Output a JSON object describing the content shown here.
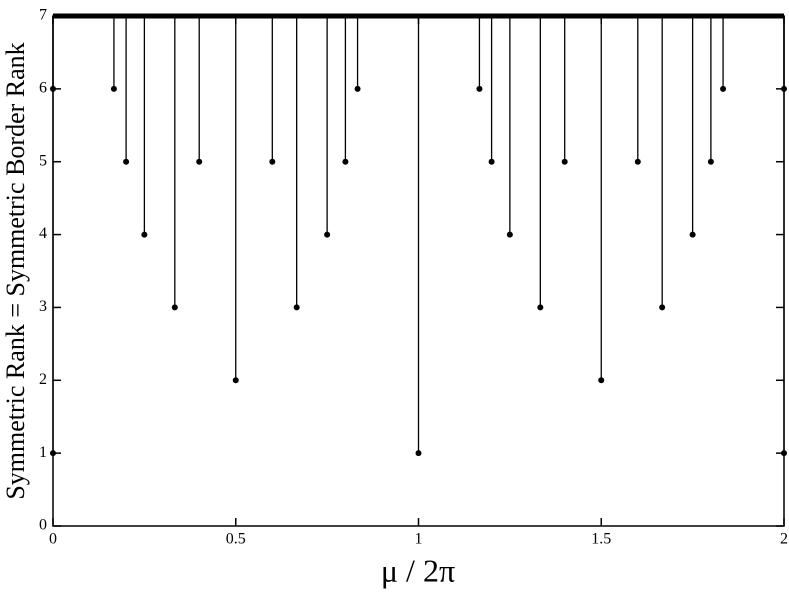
{
  "chart_data": {
    "type": "spike",
    "x_label": "μ / 2π",
    "y_label": "Symmetric Rank = Symmetric Border Rank",
    "baseline": 7,
    "x": [
      0,
      0,
      0.1667,
      0.2,
      0.25,
      0.3333,
      0.4,
      0.5,
      0.6,
      0.6667,
      0.75,
      0.8,
      0.8333,
      1,
      1.1667,
      1.2,
      1.25,
      1.3333,
      1.4,
      1.5,
      1.6,
      1.6667,
      1.75,
      1.8,
      1.8333,
      2,
      2
    ],
    "values": [
      6,
      1,
      6,
      5,
      4,
      3,
      5,
      2,
      5,
      3,
      4,
      5,
      6,
      1,
      6,
      5,
      4,
      3,
      5,
      2,
      5,
      3,
      4,
      5,
      6,
      6,
      1
    ],
    "color": "#000000",
    "xlim": [
      0,
      2
    ],
    "xticks": [
      0,
      0.5,
      1,
      1.5,
      2
    ],
    "ylim": [
      0,
      7
    ],
    "yticks": [
      0,
      1,
      2,
      3,
      4,
      5,
      6,
      7
    ]
  }
}
